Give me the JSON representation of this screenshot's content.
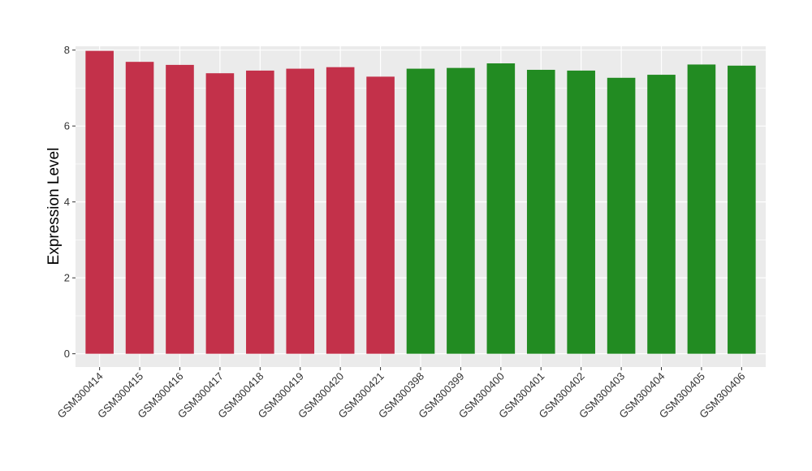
{
  "chart_data": {
    "type": "bar",
    "title": "",
    "xlabel": "",
    "ylabel": "Expression Level",
    "ylim": [
      -0.35,
      8.1
    ],
    "yticks": [
      0,
      2,
      4,
      6,
      8
    ],
    "grid": true,
    "legend": "none",
    "categories": [
      "GSM300414",
      "GSM300415",
      "GSM300416",
      "GSM300417",
      "GSM300418",
      "GSM300419",
      "GSM300420",
      "GSM300421",
      "GSM300398",
      "GSM300399",
      "GSM300400",
      "GSM300401",
      "GSM300402",
      "GSM300403",
      "GSM300404",
      "GSM300405",
      "GSM300406"
    ],
    "values": [
      7.98,
      7.69,
      7.61,
      7.39,
      7.46,
      7.51,
      7.55,
      7.3,
      7.51,
      7.53,
      7.65,
      7.48,
      7.46,
      7.27,
      7.35,
      7.62,
      7.59
    ],
    "bar_colors": [
      "#C3314A",
      "#C3314A",
      "#C3314A",
      "#C3314A",
      "#C3314A",
      "#C3314A",
      "#C3314A",
      "#C3314A",
      "#228B22",
      "#228B22",
      "#228B22",
      "#228B22",
      "#228B22",
      "#228B22",
      "#228B22",
      "#228B22",
      "#228B22"
    ],
    "panel_background": "#EBEBEB",
    "gridline_color": "#FFFFFF"
  }
}
